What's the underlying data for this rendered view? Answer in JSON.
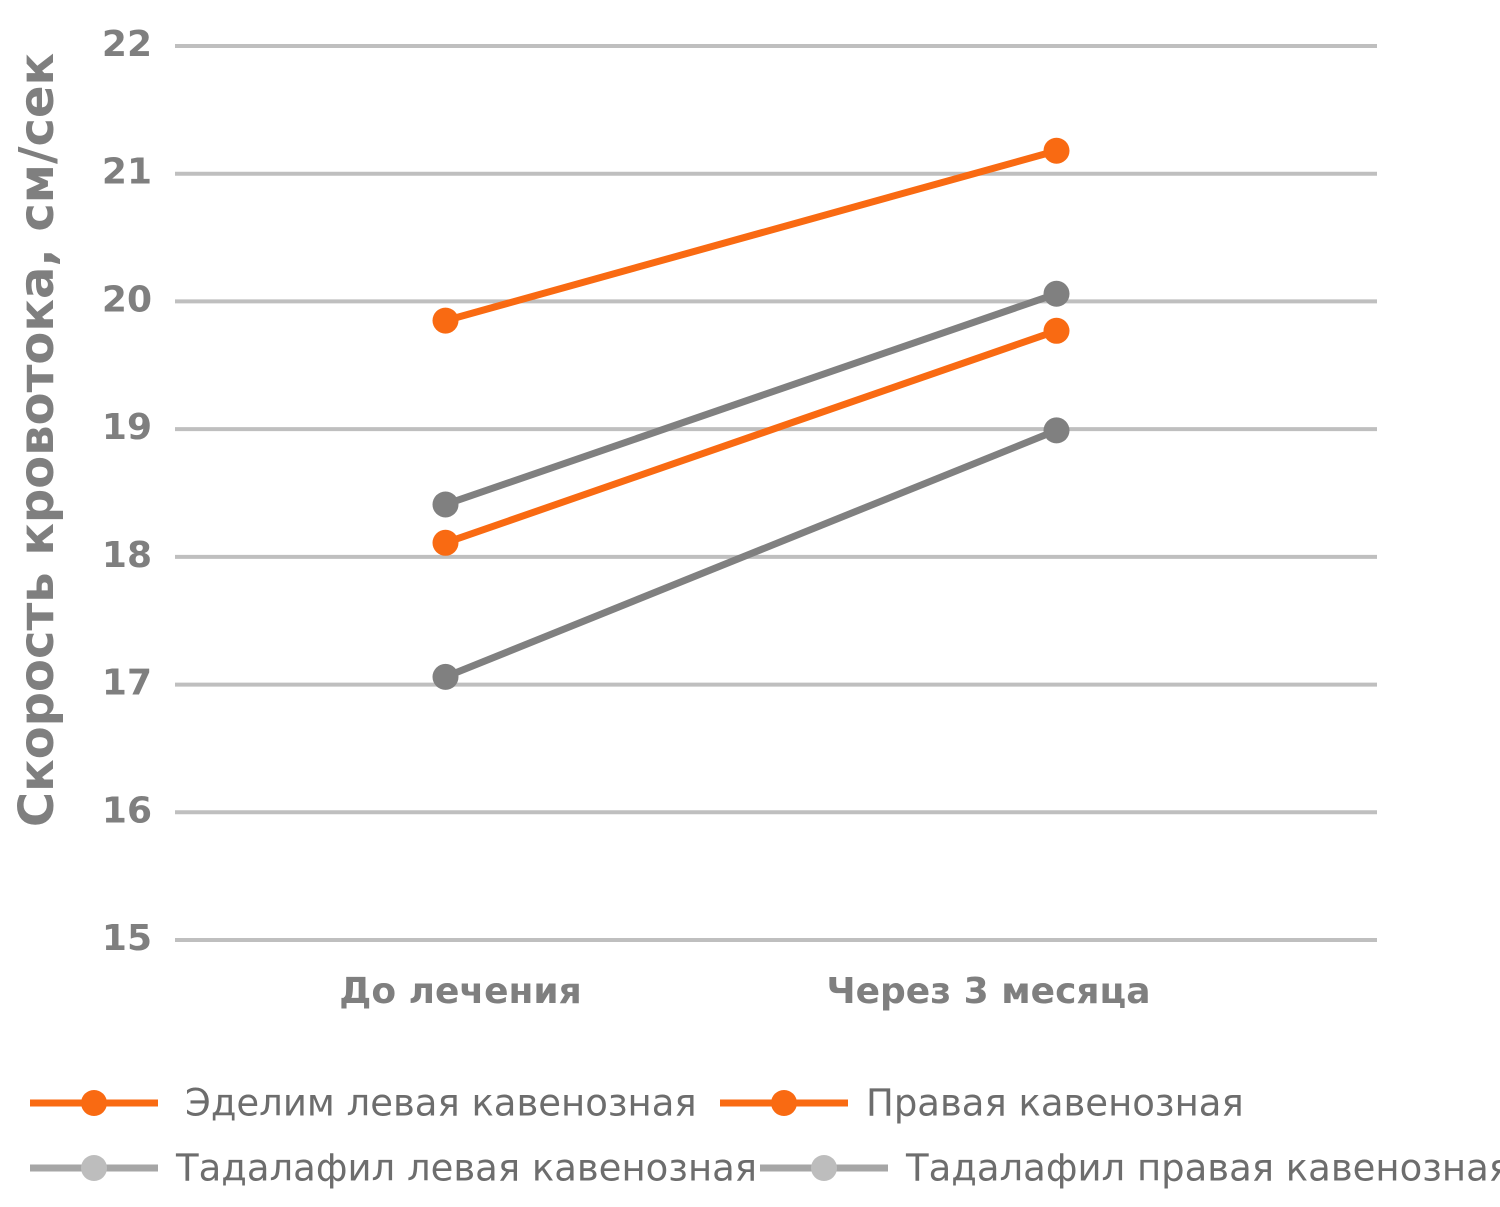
{
  "chart_data": {
    "type": "line",
    "y_label": "Скорость кровотока, см/сек",
    "categories": [
      "До лечения",
      "Через 3 месяца"
    ],
    "series": [
      {
        "name": "Эделим левая кавенозная",
        "color": "#f96a12",
        "values": [
          19.85,
          21.18
        ]
      },
      {
        "name": "Правая кавенозная",
        "color": "#f96a12",
        "values": [
          18.11,
          19.77
        ]
      },
      {
        "name": "Тадалафил левая кавенозная",
        "color": "#808080",
        "values": [
          18.41,
          20.06
        ]
      },
      {
        "name": "Тадалафил правая кавенозная",
        "color": "#808080",
        "values": [
          17.06,
          18.99
        ]
      }
    ],
    "ylim": [
      15,
      22
    ],
    "yticks": [
      15,
      16,
      17,
      18,
      19,
      20,
      21,
      22
    ],
    "grid": true
  }
}
